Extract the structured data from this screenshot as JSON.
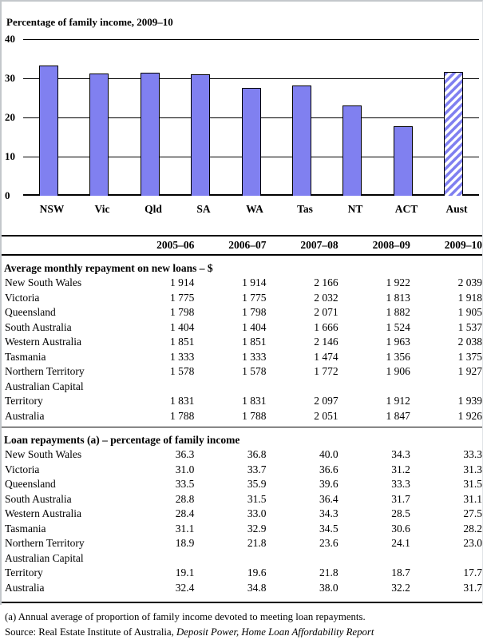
{
  "chart_data": {
    "type": "bar",
    "title": "Percentage of family income, 2009–10",
    "categories": [
      "NSW",
      "Vic",
      "Qld",
      "SA",
      "WA",
      "Tas",
      "NT",
      "ACT",
      "Aust"
    ],
    "values": [
      33.3,
      31.3,
      31.5,
      31.1,
      27.5,
      28.2,
      23.0,
      17.7,
      31.7
    ],
    "ylim": [
      0,
      40
    ],
    "yticks": [
      0,
      10,
      20,
      30,
      40
    ],
    "grid": true,
    "legend": "none",
    "hatch_category": "Aust",
    "colors": {
      "bar_fill": "#8080f0",
      "bar_border": "#000000",
      "hatch_background": "#ffffff",
      "frame_border": "#c3c7cb"
    }
  },
  "table": {
    "year_columns": [
      "2005–06",
      "2006–07",
      "2007–08",
      "2008–09",
      "2009–10"
    ],
    "sections": [
      {
        "title": "Average monthly repayment on new loans – $",
        "rows": [
          {
            "label": "New South Wales",
            "values": [
              "1 914",
              "1 914",
              "2 166",
              "1 922",
              "2 039"
            ]
          },
          {
            "label": "Victoria",
            "values": [
              "1 775",
              "1 775",
              "2 032",
              "1 813",
              "1 918"
            ]
          },
          {
            "label": "Queensland",
            "values": [
              "1 798",
              "1 798",
              "2 071",
              "1 882",
              "1 905"
            ]
          },
          {
            "label": "South Australia",
            "values": [
              "1 404",
              "1 404",
              "1 666",
              "1 524",
              "1 537"
            ]
          },
          {
            "label": "Western Australia",
            "values": [
              "1 851",
              "1 851",
              "2 146",
              "1 963",
              "2 038"
            ]
          },
          {
            "label": "Tasmania",
            "values": [
              "1 333",
              "1 333",
              "1 474",
              "1 356",
              "1 375"
            ]
          },
          {
            "label": "Northern Territory",
            "values": [
              "1 578",
              "1 578",
              "1 772",
              "1 906",
              "1 927"
            ]
          },
          {
            "label": "Australian Capital Territory",
            "values": [
              "1 831",
              "1 831",
              "2 097",
              "1 912",
              "1 939"
            ]
          },
          {
            "label": "Australia",
            "values": [
              "1 788",
              "1 788",
              "2 051",
              "1 847",
              "1 926"
            ]
          }
        ]
      },
      {
        "title": "Loan repayments (a) – percentage of family income",
        "rows": [
          {
            "label": "New South Wales",
            "values": [
              "36.3",
              "36.8",
              "40.0",
              "34.3",
              "33.3"
            ]
          },
          {
            "label": "Victoria",
            "values": [
              "31.0",
              "33.7",
              "36.6",
              "31.2",
              "31.3"
            ]
          },
          {
            "label": "Queensland",
            "values": [
              "33.5",
              "35.9",
              "39.6",
              "33.3",
              "31.5"
            ]
          },
          {
            "label": "South Australia",
            "values": [
              "28.8",
              "31.5",
              "36.4",
              "31.7",
              "31.1"
            ]
          },
          {
            "label": "Western Australia",
            "values": [
              "28.4",
              "33.0",
              "34.3",
              "28.5",
              "27.5"
            ]
          },
          {
            "label": "Tasmania",
            "values": [
              "31.1",
              "32.9",
              "34.5",
              "30.6",
              "28.2"
            ]
          },
          {
            "label": "Northern Territory",
            "values": [
              "18.9",
              "21.8",
              "23.6",
              "24.1",
              "23.0"
            ]
          },
          {
            "label": "Australian Capital Territory",
            "values": [
              "19.1",
              "19.6",
              "21.8",
              "18.7",
              "17.7"
            ]
          },
          {
            "label": "Australia",
            "values": [
              "32.4",
              "34.8",
              "38.0",
              "32.2",
              "31.7"
            ]
          }
        ]
      }
    ]
  },
  "footer": {
    "footnote": "(a) Annual average of proportion of family income devoted to meeting loan repayments.",
    "source_prefix": "Source: Real Estate Institute of Australia, ",
    "source_italic": "Deposit Power, Home Loan Affordability Report"
  }
}
